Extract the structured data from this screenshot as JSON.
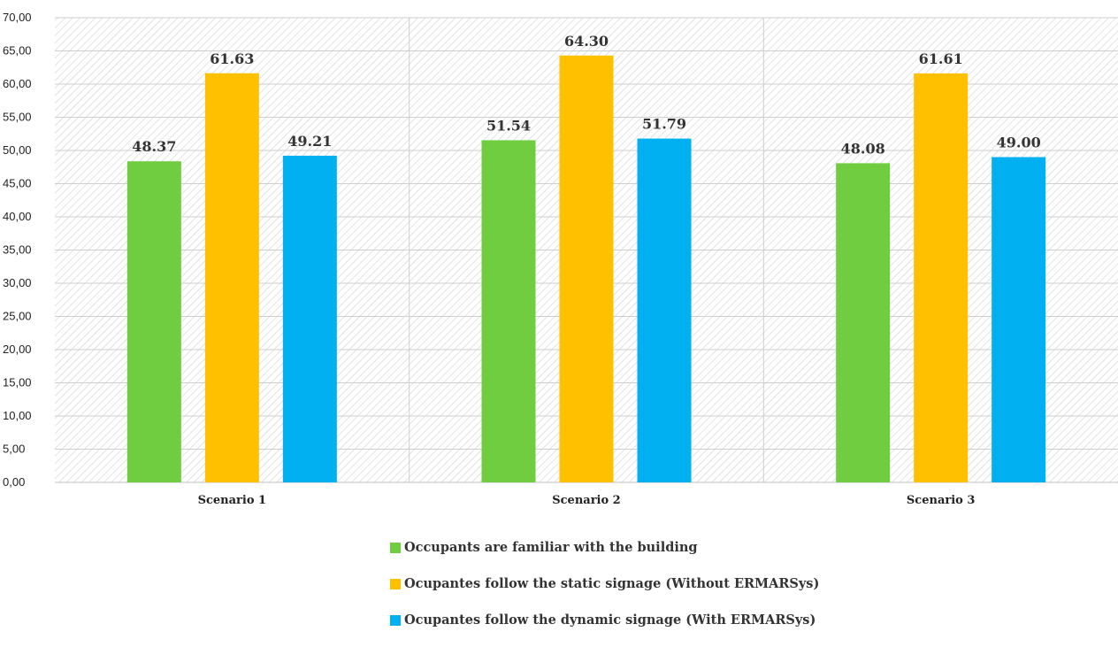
{
  "chart_data": {
    "type": "bar",
    "categories": [
      "Scenario 1",
      "Scenario 2",
      "Scenario 3"
    ],
    "series": [
      {
        "name": "Occupants are familiar with the building",
        "color": "#70CD40",
        "values": [
          48.37,
          51.54,
          48.08
        ],
        "labels": [
          "48.37",
          "51.54",
          "48.08"
        ]
      },
      {
        "name": "Ocupantes follow the static signage (Without ERMARSys)",
        "color": "#FFC000",
        "values": [
          61.63,
          64.3,
          61.61
        ],
        "labels": [
          "61.63",
          "64.30",
          "61.61"
        ]
      },
      {
        "name": "Ocupantes follow the dynamic signage (With ERMARSys)",
        "color": "#00B0F0",
        "values": [
          49.21,
          51.79,
          49.0
        ],
        "labels": [
          "49.21",
          "51.79",
          "49.00"
        ]
      }
    ],
    "ylim": [
      0,
      70
    ],
    "yticks": [
      "0,00",
      "5,00",
      "10,00",
      "15,00",
      "20,00",
      "25,00",
      "30,00",
      "35,00",
      "40,00",
      "45,00",
      "50,00",
      "55,00",
      "60,00",
      "65,00",
      "70,00"
    ],
    "grid": true,
    "legend_position": "bottom"
  }
}
